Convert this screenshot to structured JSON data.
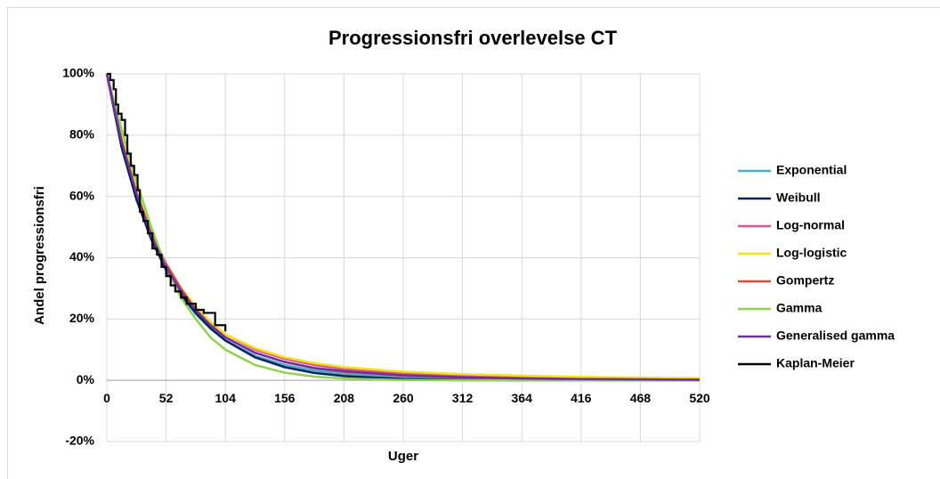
{
  "chart_data": {
    "type": "line",
    "title": "Progressionsfri overlevelse CT",
    "x_label": "Uger",
    "y_label": "Andel progressionsfri",
    "x": [
      0,
      13,
      26,
      39,
      52,
      65,
      78,
      91,
      104,
      130,
      156,
      182,
      208,
      260,
      312,
      364,
      416,
      468,
      520
    ],
    "xlim": [
      0,
      520
    ],
    "xticks": [
      0,
      52,
      104,
      156,
      208,
      260,
      312,
      364,
      416,
      468,
      520
    ],
    "ylim": [
      -20,
      100
    ],
    "yticks": [
      {
        "value": -20,
        "label": "-20%"
      },
      {
        "value": 0,
        "label": "0%"
      },
      {
        "value": 20,
        "label": "20%"
      },
      {
        "value": 40,
        "label": "40%"
      },
      {
        "value": 60,
        "label": "60%"
      },
      {
        "value": 80,
        "label": "80%"
      },
      {
        "value": 100,
        "label": "100%"
      }
    ],
    "grid": true,
    "legend": "right",
    "series": [
      {
        "name": "Exponential",
        "color": "#4bacc6",
        "values": [
          100,
          77.5,
          60,
          46.5,
          36,
          28,
          21.6,
          16.8,
          13,
          8,
          5,
          3.2,
          2.1,
          1,
          0.5,
          0.2,
          0.1,
          0,
          0
        ]
      },
      {
        "name": "Weibull",
        "color": "#002060",
        "values": [
          100,
          76,
          59,
          46,
          36,
          28,
          22,
          17,
          13,
          7.5,
          4.3,
          2.4,
          1.4,
          0.4,
          0.1,
          0,
          0,
          0,
          0
        ]
      },
      {
        "name": "Log-normal",
        "color": "#e0528a",
        "values": [
          100,
          79,
          62,
          48,
          38,
          30,
          24,
          19,
          15,
          10,
          7,
          5,
          3.7,
          2.2,
          1.4,
          0.9,
          0.6,
          0.4,
          0.3
        ]
      },
      {
        "name": "Log-logistic",
        "color": "#f2e21a",
        "values": [
          100,
          80,
          62,
          48,
          38,
          30,
          24,
          19,
          15,
          10.5,
          7.5,
          5.6,
          4.3,
          2.8,
          2,
          1.5,
          1.1,
          0.9,
          0.7
        ]
      },
      {
        "name": "Gompertz",
        "color": "#e04a3c",
        "values": [
          100,
          78,
          61,
          48,
          38,
          30,
          23,
          18,
          14,
          9,
          6,
          4,
          2.8,
          1.5,
          0.9,
          0.6,
          0.4,
          0.3,
          0.2
        ]
      },
      {
        "name": "Gamma",
        "color": "#92d050",
        "values": [
          100,
          82,
          65,
          50,
          37,
          27,
          20,
          14,
          10,
          5,
          2.5,
          1.2,
          0.6,
          0.1,
          0,
          0,
          0,
          0,
          0
        ]
      },
      {
        "name": "Generalised gamma",
        "color": "#7030a0",
        "values": [
          100,
          78,
          61,
          47,
          37,
          29,
          23,
          18,
          14,
          9,
          6,
          4,
          3,
          1.6,
          1,
          0.6,
          0.4,
          0.3,
          0.2
        ]
      },
      {
        "name": "Kaplan-Meier",
        "color": "#000000",
        "step": true,
        "x": [
          0,
          3,
          6,
          8,
          10,
          13,
          16,
          18,
          21,
          24,
          27,
          29,
          32,
          36,
          40,
          44,
          48,
          52,
          56,
          60,
          65,
          70,
          78,
          85,
          95,
          104
        ],
        "values": [
          100,
          98,
          95,
          90,
          87,
          85,
          80,
          74,
          70,
          67,
          62,
          55,
          52,
          48,
          43,
          41,
          37,
          34,
          31,
          29,
          27,
          25,
          23,
          22,
          18,
          16
        ]
      }
    ]
  }
}
